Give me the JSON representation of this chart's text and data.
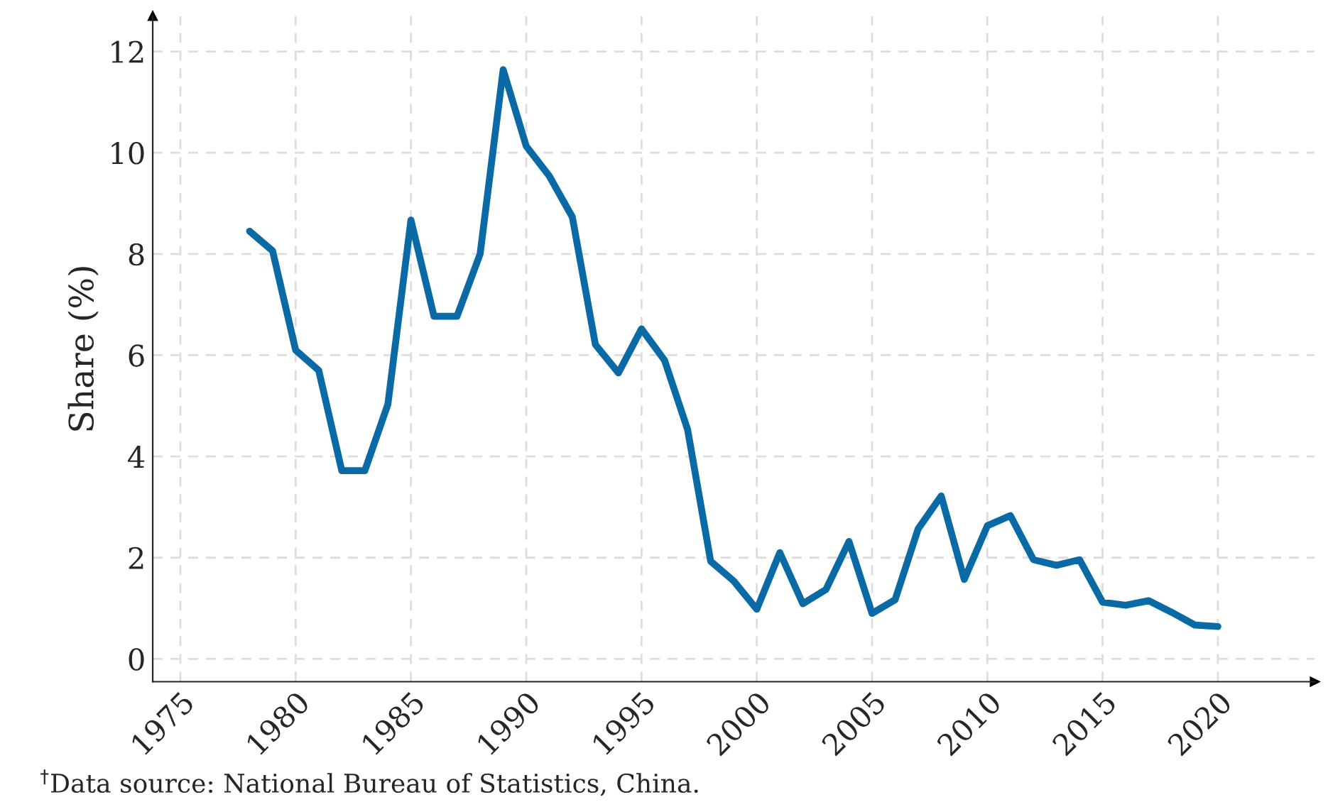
{
  "chart_data": {
    "type": "line",
    "ylabel": "Share (%)",
    "x": [
      1978,
      1979,
      1980,
      1981,
      1982,
      1983,
      1984,
      1985,
      1986,
      1987,
      1988,
      1989,
      1990,
      1991,
      1992,
      1993,
      1994,
      1995,
      1996,
      1997,
      1998,
      1999,
      2000,
      2001,
      2002,
      2003,
      2004,
      2005,
      2006,
      2007,
      2008,
      2009,
      2010,
      2011,
      2012,
      2013,
      2014,
      2015,
      2016,
      2017,
      2018,
      2019,
      2020
    ],
    "series": [
      {
        "color": "#0a6aa6",
        "values": [
          8.45,
          8.06,
          6.1,
          5.7,
          3.72,
          3.72,
          5.03,
          8.67,
          6.77,
          6.77,
          8.0,
          11.64,
          10.13,
          9.54,
          8.73,
          6.21,
          5.65,
          6.52,
          5.9,
          4.53,
          1.93,
          1.54,
          0.98,
          2.1,
          1.09,
          1.37,
          2.32,
          0.9,
          1.17,
          2.57,
          3.22,
          1.57,
          2.63,
          2.83,
          1.96,
          1.85,
          1.96,
          1.12,
          1.06,
          1.15,
          0.92,
          0.67,
          0.64
        ]
      }
    ],
    "xlim": [
      1973.8,
      2024.2
    ],
    "xticks": [
      1975,
      1980,
      1985,
      1990,
      1995,
      2000,
      2005,
      2010,
      2015,
      2020
    ],
    "ylim": [
      -0.45,
      12.7
    ],
    "yticks": [
      0,
      2,
      4,
      6,
      8,
      10,
      12
    ],
    "grid": true,
    "line_style": "solid",
    "marker": "none",
    "annotations": [
      "$^{†}$Data source: National Bureau of Statistics, China."
    ]
  }
}
